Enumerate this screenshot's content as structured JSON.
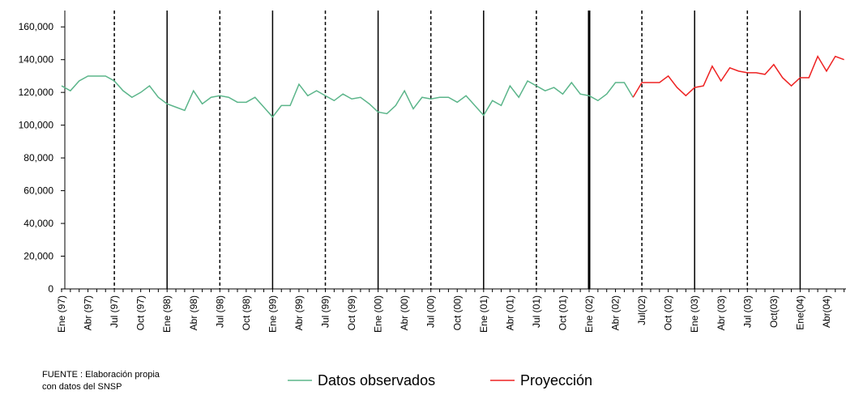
{
  "chart_data": {
    "type": "line",
    "categories": [
      "Ene (97)",
      null,
      null,
      "Abr (97)",
      null,
      null,
      "Jul (97)",
      null,
      null,
      "Oct (97)",
      null,
      null,
      "Ene (98)",
      null,
      null,
      "Abr (98)",
      null,
      null,
      "Jul (98)",
      null,
      null,
      "Oct (98)",
      null,
      null,
      "Ene (99)",
      null,
      null,
      "Abr (99)",
      null,
      null,
      "Jul (99)",
      null,
      null,
      "Oct (99)",
      null,
      null,
      "Ene (00)",
      null,
      null,
      "Abr (00)",
      null,
      null,
      "Jul (00)",
      null,
      null,
      "Oct (00)",
      null,
      null,
      "Ene (01)",
      null,
      null,
      "Abr (01)",
      null,
      null,
      "Jul (01)",
      null,
      null,
      "Oct (01)",
      null,
      null,
      "Ene (02)",
      null,
      null,
      "Abr (02)",
      null,
      null,
      "Jul(02)",
      null,
      null,
      "Oct (02)",
      null,
      null,
      "Ene (03)",
      null,
      null,
      "Abr (03)",
      null,
      null,
      "Jul (03)",
      null,
      null,
      "Oct(03)",
      null,
      null,
      "Ene(04)",
      null,
      null,
      "Abr(04)",
      null,
      null
    ],
    "series": [
      {
        "name": "Datos observados",
        "color": "#5bb58a",
        "values": [
          124000,
          121000,
          127000,
          130000,
          130000,
          130000,
          127000,
          121000,
          117000,
          120000,
          124000,
          117000,
          113000,
          111000,
          109000,
          121000,
          113000,
          117000,
          118000,
          117000,
          114000,
          114000,
          117000,
          111000,
          105000,
          112000,
          112000,
          125000,
          118000,
          121000,
          118000,
          115000,
          119000,
          116000,
          117000,
          113000,
          108000,
          107000,
          112000,
          121000,
          110000,
          117000,
          116000,
          117000,
          117000,
          114000,
          118000,
          112000,
          106000,
          115000,
          112000,
          124000,
          117000,
          127000,
          124000,
          121000,
          123000,
          119000,
          126000,
          119000,
          118000,
          115000,
          119000,
          126000,
          126000,
          117000,
          null,
          null,
          null,
          null,
          null,
          null,
          null,
          null,
          null,
          null,
          null,
          null,
          null,
          null,
          null,
          null,
          null,
          null,
          null,
          null,
          null,
          null,
          null,
          null
        ]
      },
      {
        "name": "Proyección",
        "color": "#ee2222",
        "values": [
          null,
          null,
          null,
          null,
          null,
          null,
          null,
          null,
          null,
          null,
          null,
          null,
          null,
          null,
          null,
          null,
          null,
          null,
          null,
          null,
          null,
          null,
          null,
          null,
          null,
          null,
          null,
          null,
          null,
          null,
          null,
          null,
          null,
          null,
          null,
          null,
          null,
          null,
          null,
          null,
          null,
          null,
          null,
          null,
          null,
          null,
          null,
          null,
          null,
          null,
          null,
          null,
          null,
          null,
          null,
          null,
          null,
          null,
          null,
          null,
          null,
          null,
          null,
          null,
          null,
          117000,
          126000,
          126000,
          126000,
          130000,
          123000,
          118000,
          123000,
          124000,
          136000,
          127000,
          135000,
          133000,
          132000,
          132000,
          131000,
          137000,
          129000,
          124000,
          129000,
          129000,
          142000,
          133000,
          142000,
          140000
        ]
      }
    ],
    "ylim": [
      0,
      170000
    ],
    "yticks": [
      0,
      {
        "value": 20000,
        "label": "20,000"
      },
      {
        "value": 40000,
        "label": "40,000"
      },
      {
        "value": 60000,
        "label": "60,000"
      },
      {
        "value": 80000,
        "label": "80,000"
      },
      {
        "value": 100000,
        "label": "100,000"
      },
      {
        "value": 120000,
        "label": "120,000"
      },
      {
        "value": 140000,
        "label": "140,000"
      },
      {
        "value": 160000,
        "label": "160,000"
      }
    ],
    "legend": "bottom",
    "source": [
      "FUENTE : Elaboración propia",
      "con datos del SNSP"
    ]
  }
}
